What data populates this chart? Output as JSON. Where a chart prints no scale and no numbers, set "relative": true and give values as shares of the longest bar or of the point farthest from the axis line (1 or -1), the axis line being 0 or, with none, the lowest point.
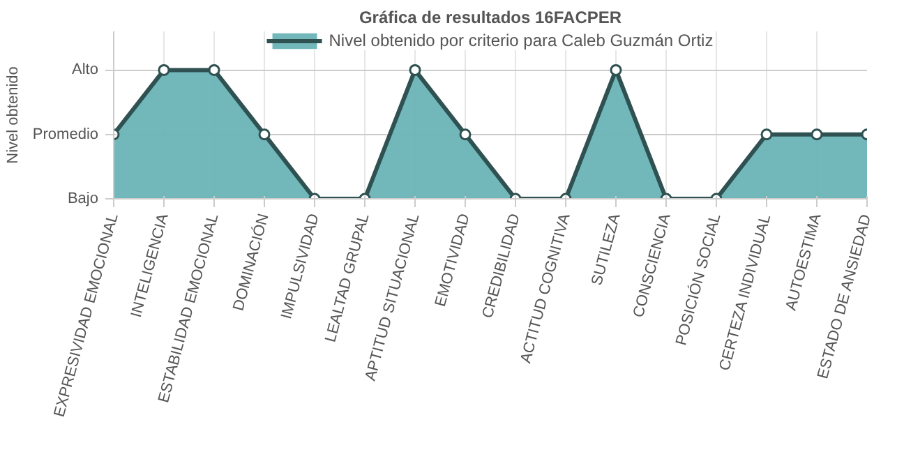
{
  "chart_data": {
    "type": "area",
    "title": "Gráfica de resultados 16FACPER",
    "ylabel": "Nivel obtenido",
    "relative": true,
    "annotations": [
      "Bajo",
      "Promedio",
      "Alto"
    ],
    "categories": [
      "EXPRESIVIDAD EMOCIONAL",
      "INTELIGENCIA",
      "ESTABILIDAD EMOCIONAL",
      "DOMINACIÓN",
      "IMPULSIVIDAD",
      "LEALTAD GRUPAL",
      "APTITUD SITUACIONAL",
      "EMOTIVIDAD",
      "CREDIBILIDAD",
      "ACTITUD COGNITIVA",
      "SUTILEZA",
      "CONSCIENCIA",
      "POSICIÓN SOCIAL",
      "CERTEZA INDIVIDUAL",
      "AUTOESTIMA",
      "ESTADO DE ANSIEDAD"
    ],
    "series": [
      {
        "name": "Nivel obtenido por criterio para Caleb Guzmán Ortiz",
        "color": "#6ab4b7",
        "values": [
          0.5,
          1,
          1,
          0.5,
          0,
          0,
          1,
          0.5,
          0,
          0,
          1,
          0,
          0,
          0.5,
          0.5,
          0.5
        ]
      }
    ],
    "grid": true,
    "legend": "top",
    "marker": "circle",
    "line_style": "solid"
  }
}
